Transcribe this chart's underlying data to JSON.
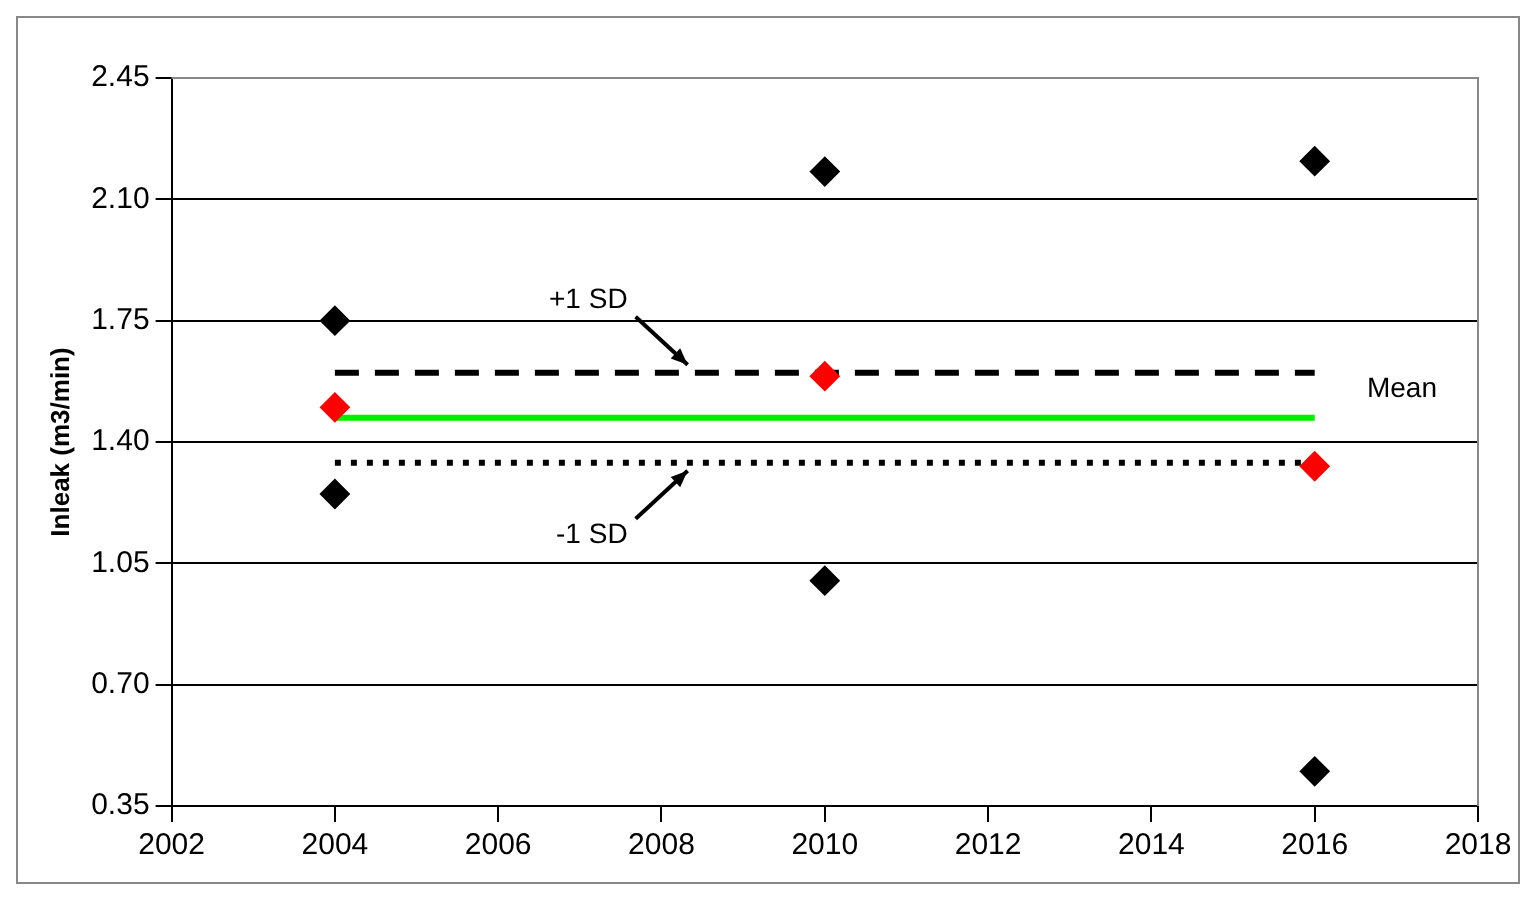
{
  "chart_data": {
    "type": "scatter",
    "ylabel": "Inleak (m3/min)",
    "marker": "diamond",
    "grid": "y",
    "legend": false,
    "xlim": [
      2002,
      2018
    ],
    "xticks": [
      2002,
      2004,
      2006,
      2008,
      2010,
      2012,
      2014,
      2016,
      2018
    ],
    "ylim": [
      0.35,
      2.45
    ],
    "yticks": [
      0.35,
      {
        "value": 0.7,
        "label": "0.70"
      },
      1.05,
      {
        "value": 1.4,
        "label": "1.40"
      },
      1.75,
      {
        "value": 2.1,
        "label": "2.10"
      },
      2.45
    ],
    "series": [
      {
        "color": "#000000",
        "x": [
          2004,
          2004,
          2010,
          2010,
          2016,
          2016
        ],
        "values": [
          1.75,
          1.25,
          2.18,
          1.0,
          2.21,
          0.45
        ]
      },
      {
        "color": "#ff0000",
        "x": [
          2004,
          2010,
          2016
        ],
        "values": [
          1.5,
          1.59,
          1.33
        ]
      },
      {
        "type": "line",
        "color": "#00ee00",
        "line_style": "solid",
        "marker": "none",
        "x": [
          2004,
          2016
        ],
        "values": [
          1.47,
          1.47
        ]
      },
      {
        "type": "line",
        "color": "#000000",
        "line_style": "dashed",
        "marker": "none",
        "x": [
          2004,
          2016
        ],
        "values": [
          1.6,
          1.6
        ]
      },
      {
        "type": "line",
        "color": "#000000",
        "line_style": "dotted",
        "marker": "none",
        "x": [
          2004,
          2016
        ],
        "values": [
          1.34,
          1.34
        ]
      }
    ],
    "annotations": [
      {
        "text": "+1 SD",
        "y": 1.6
      },
      {
        "text": "-1 SD",
        "y": 1.34
      },
      "Mean"
    ]
  }
}
